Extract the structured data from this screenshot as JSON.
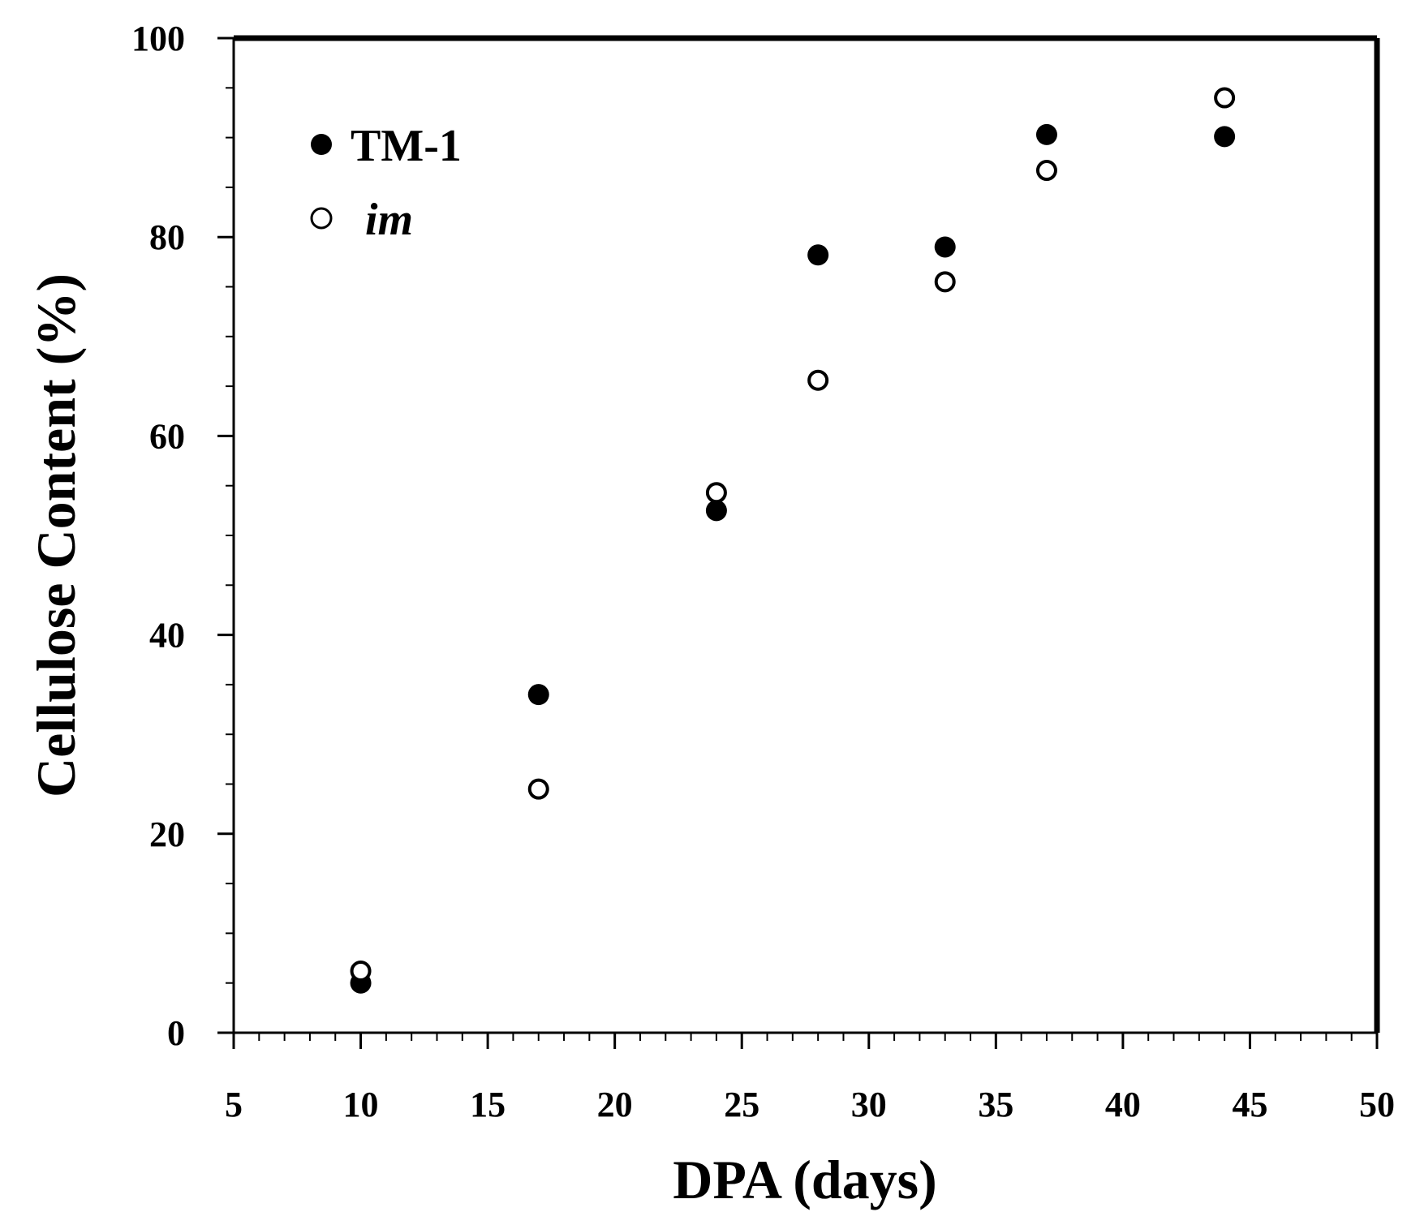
{
  "chart_data": {
    "type": "scatter",
    "title": "",
    "xlabel": "DPA (days)",
    "ylabel": "Cellulose Content (%)",
    "xlim": [
      5,
      50
    ],
    "ylim": [
      0,
      100
    ],
    "x_ticks": [
      5,
      10,
      15,
      20,
      25,
      30,
      35,
      40,
      45,
      50
    ],
    "y_ticks": [
      0,
      20,
      40,
      60,
      80,
      100
    ],
    "x_minor_step": 1,
    "y_minor_step": 5,
    "grid": false,
    "legend_position": "top-left",
    "series": [
      {
        "name": "TM-1",
        "marker": "filled-circle",
        "color": "#000000",
        "points": [
          [
            10,
            5
          ],
          [
            17,
            34
          ],
          [
            24,
            52.5
          ],
          [
            28,
            78.2
          ],
          [
            33,
            79
          ],
          [
            37,
            90.3
          ],
          [
            44,
            90.1
          ]
        ]
      },
      {
        "name": "im",
        "marker": "open-circle",
        "color": "#000000",
        "points": [
          [
            10,
            6.2
          ],
          [
            17,
            24.5
          ],
          [
            24,
            54.3
          ],
          [
            28,
            65.6
          ],
          [
            33,
            75.5
          ],
          [
            37,
            86.7
          ],
          [
            44,
            94
          ]
        ]
      }
    ]
  }
}
